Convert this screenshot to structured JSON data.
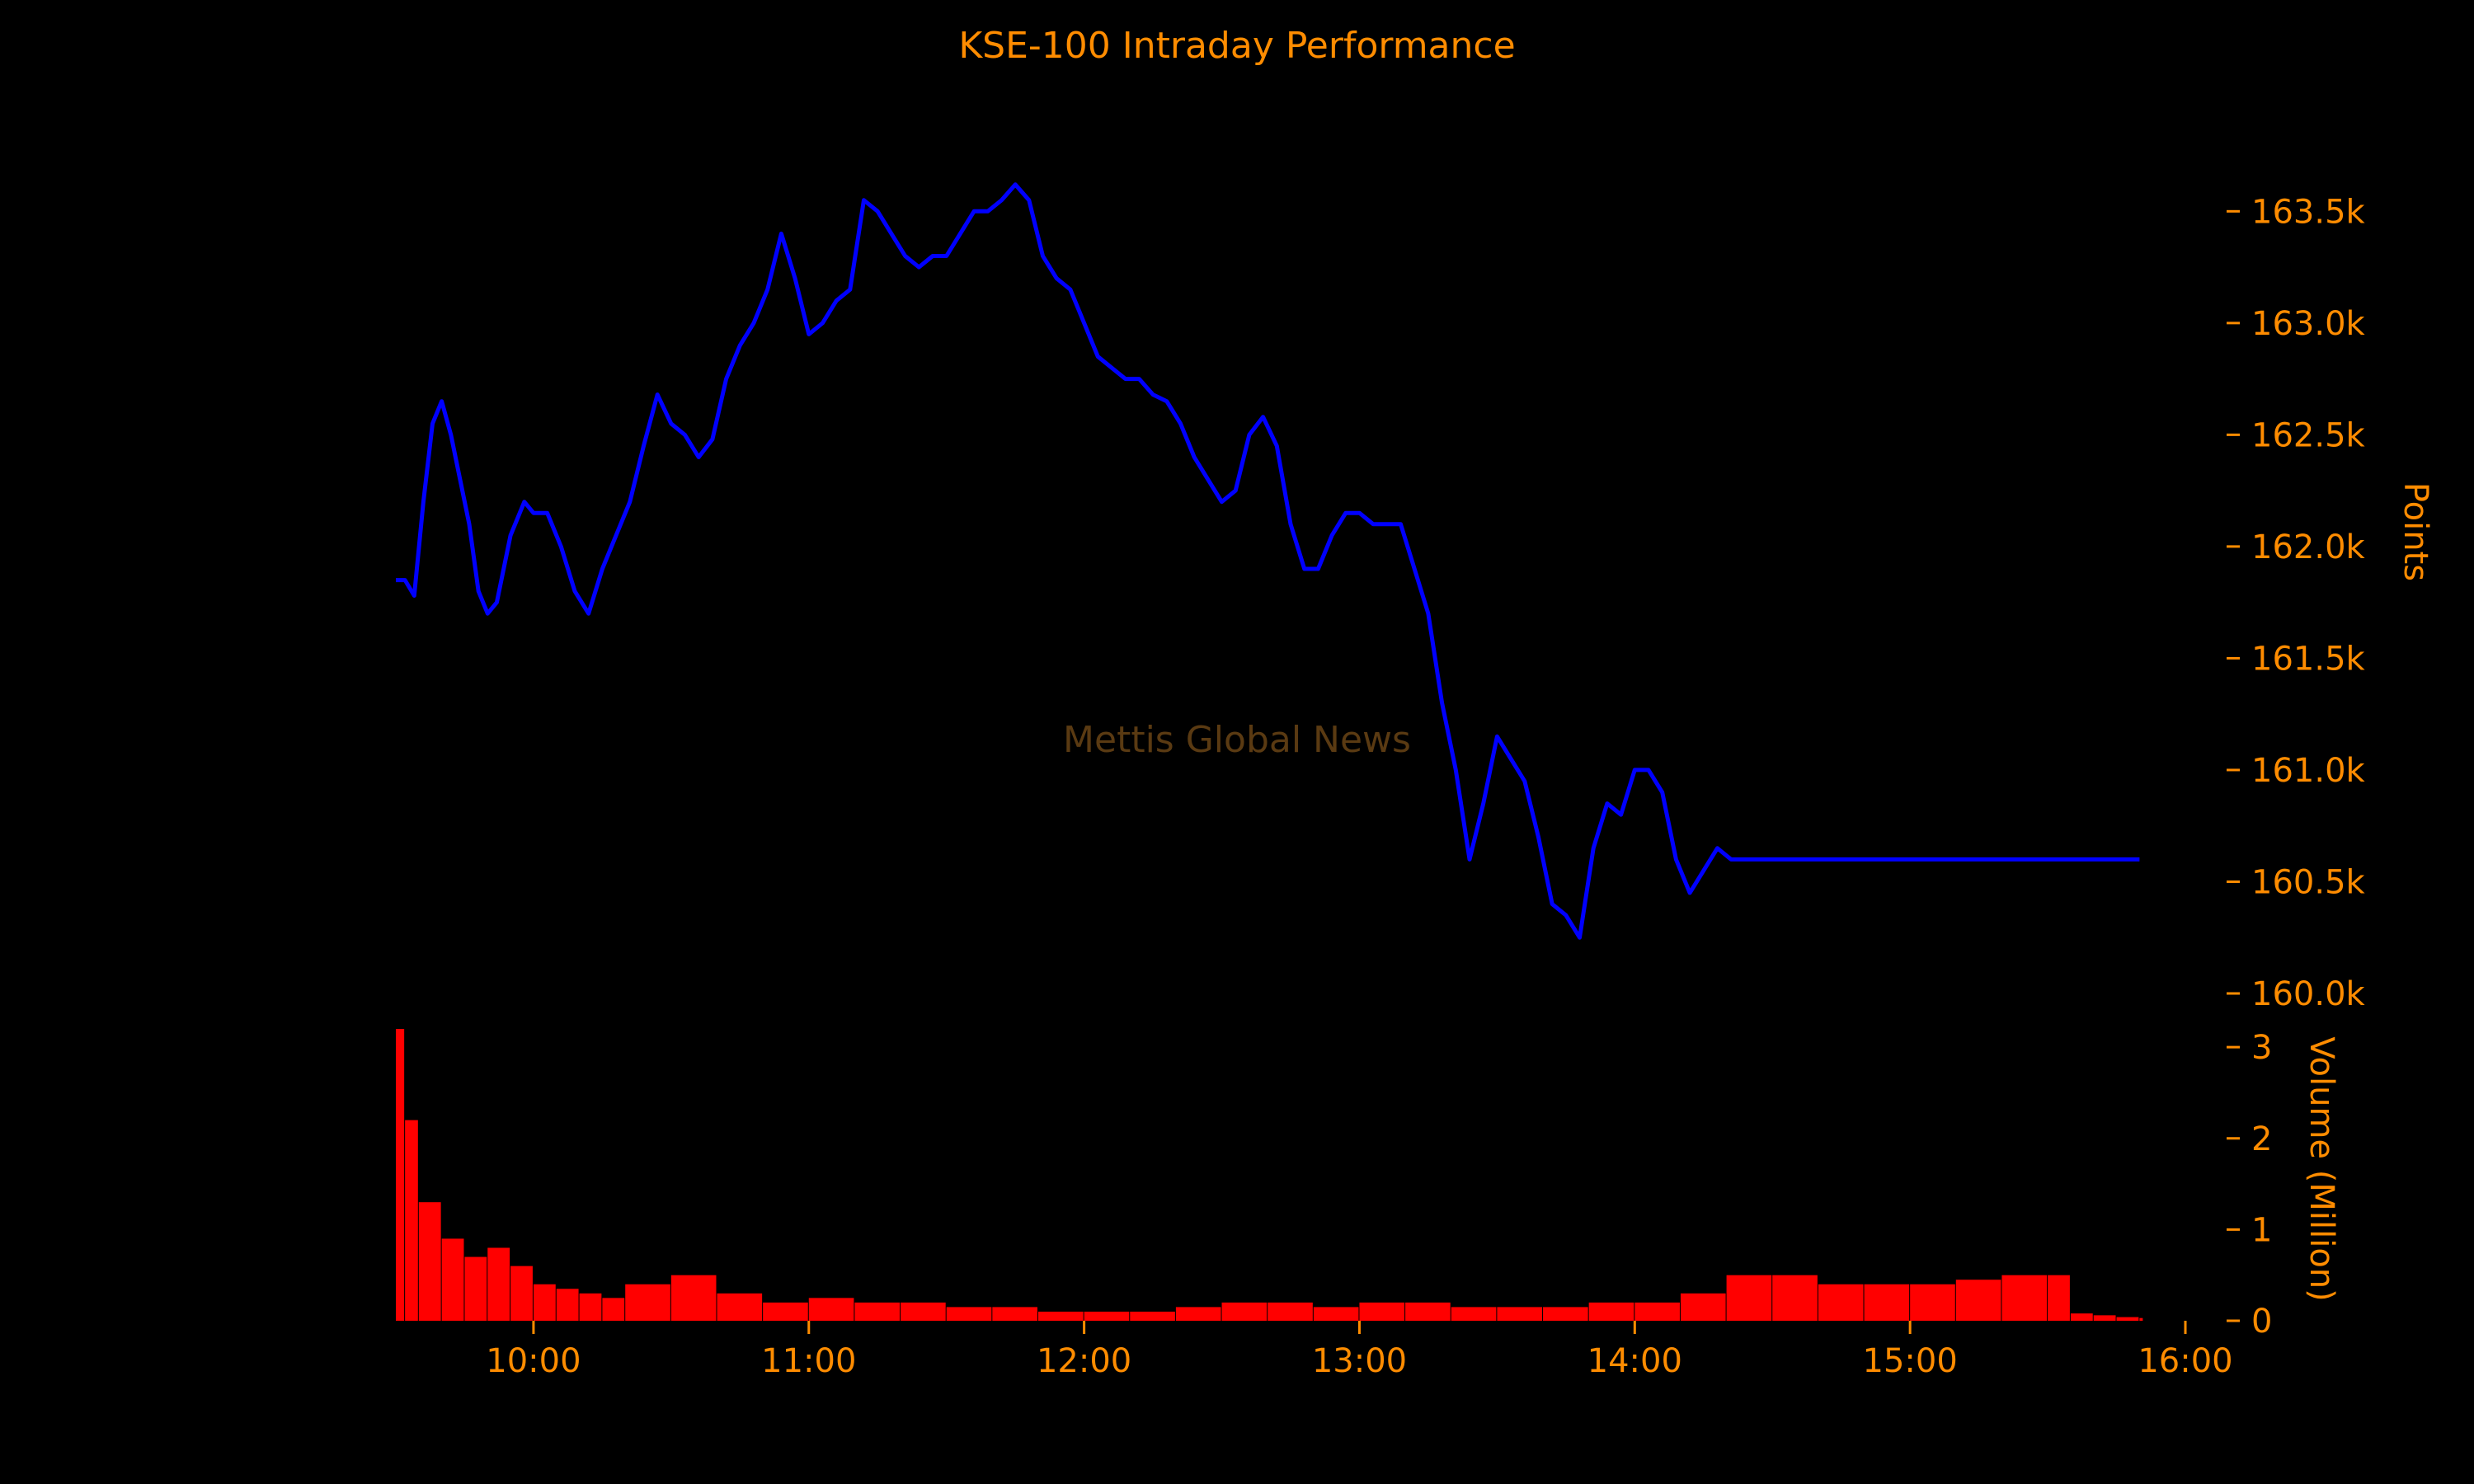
{
  "chart_data": {
    "type": "line",
    "title": "KSE-100 Intraday Performance",
    "watermark": "Mettis Global News",
    "colors": {
      "background": "#000000",
      "text": "#ff8c00",
      "line": "#0000ff",
      "volume": "#ff0000",
      "watermark": "#5a3a12"
    },
    "price": {
      "ylabel": "Points",
      "ylim": [
        160000,
        163800
      ],
      "yticks": [
        160000,
        160500,
        161000,
        161500,
        162000,
        162500,
        163000,
        163500
      ],
      "ytick_labels": [
        "160.0k",
        "160.5k",
        "161.0k",
        "161.5k",
        "162.0k",
        "162.5k",
        "163.0k",
        "163.5k"
      ],
      "series": [
        {
          "x": [
            "09:30",
            "09:32",
            "09:34",
            "09:36",
            "09:38",
            "09:40",
            "09:42",
            "09:44",
            "09:46",
            "09:48",
            "09:50",
            "09:52",
            "09:55",
            "09:58",
            "10:00",
            "10:03",
            "10:06",
            "10:09",
            "10:12",
            "10:15",
            "10:18",
            "10:21",
            "10:24",
            "10:27",
            "10:30",
            "10:33",
            "10:36",
            "10:39",
            "10:42",
            "10:45",
            "10:48",
            "10:51",
            "10:54",
            "10:57",
            "11:00",
            "11:03",
            "11:06",
            "11:09",
            "11:12",
            "11:15",
            "11:18",
            "11:21",
            "11:24",
            "11:27",
            "11:30",
            "11:33",
            "11:36",
            "11:39",
            "11:42",
            "11:45",
            "11:48",
            "11:51",
            "11:54",
            "11:57",
            "12:00",
            "12:03",
            "12:06",
            "12:09",
            "12:12",
            "12:15",
            "12:18",
            "12:21",
            "12:24",
            "12:27",
            "12:30",
            "12:33",
            "12:36",
            "12:39",
            "12:42",
            "12:45",
            "12:48",
            "12:51",
            "12:54",
            "12:57",
            "13:00",
            "13:03",
            "13:06",
            "13:09",
            "13:12",
            "13:15",
            "13:18",
            "13:21",
            "13:24",
            "13:27",
            "13:30",
            "13:33",
            "13:36",
            "13:39",
            "13:42",
            "13:45",
            "13:48",
            "13:51",
            "13:54",
            "13:57",
            "14:00",
            "14:03",
            "14:06",
            "14:09",
            "14:12",
            "14:15",
            "14:18",
            "14:21",
            "14:24",
            "14:27",
            "14:30",
            "14:33",
            "14:36",
            "14:39",
            "14:42",
            "14:45",
            "14:48",
            "14:51",
            "14:54",
            "14:57",
            "15:00",
            "15:03",
            "15:06",
            "15:09",
            "15:12",
            "15:15",
            "15:18",
            "15:21",
            "15:24",
            "15:27",
            "15:30",
            "15:33",
            "15:36",
            "15:39",
            "15:42",
            "15:45",
            "15:48",
            "15:50"
          ],
          "values": [
            161850,
            161850,
            161780,
            162200,
            162550,
            162650,
            162500,
            162300,
            162100,
            161800,
            161700,
            161750,
            162050,
            162200,
            162150,
            162150,
            162000,
            161800,
            161700,
            161900,
            162050,
            162200,
            162450,
            162680,
            162550,
            162500,
            162400,
            162480,
            162750,
            162900,
            163000,
            163150,
            163400,
            163200,
            162950,
            163000,
            163100,
            163150,
            163550,
            163500,
            163400,
            163300,
            163250,
            163300,
            163300,
            163400,
            163500,
            163500,
            163550,
            163620,
            163550,
            163300,
            163200,
            163150,
            163000,
            162850,
            162800,
            162750,
            162750,
            162680,
            162650,
            162550,
            162400,
            162300,
            162200,
            162250,
            162500,
            162580,
            162450,
            162100,
            161900,
            161900,
            162050,
            162150,
            162150,
            162100,
            162100,
            162100,
            161900,
            161700,
            161300,
            161000,
            160600,
            160850,
            161150,
            161050,
            160950,
            160700,
            160400,
            160350,
            160250,
            160650,
            160850,
            160800,
            161000,
            161000,
            160900,
            160600,
            160450,
            160550,
            160650,
            160600,
            160600,
            160600,
            160600,
            160600,
            160600,
            160600,
            160600,
            160600,
            160600,
            160600,
            160600,
            160600,
            160600,
            160600,
            160600,
            160600,
            160600,
            160600,
            160600,
            160600,
            160600,
            160600,
            160600,
            160600,
            160600,
            160600,
            160600,
            160600,
            160600,
            160600
          ]
        }
      ]
    },
    "volume": {
      "ylabel": "Volume (Million)",
      "ylim": [
        0,
        3.2
      ],
      "yticks": [
        0,
        1,
        2,
        3
      ],
      "ytick_labels": [
        "0",
        "1",
        "2",
        "3"
      ],
      "series": [
        {
          "x": [
            "09:30",
            "09:32",
            "09:35",
            "09:40",
            "09:45",
            "09:50",
            "09:55",
            "10:00",
            "10:05",
            "10:10",
            "10:15",
            "10:20",
            "10:30",
            "10:40",
            "10:50",
            "11:00",
            "11:10",
            "11:20",
            "11:30",
            "11:40",
            "11:50",
            "12:00",
            "12:10",
            "12:20",
            "12:30",
            "12:40",
            "12:50",
            "13:00",
            "13:10",
            "13:20",
            "13:30",
            "13:40",
            "13:50",
            "14:00",
            "14:10",
            "14:20",
            "14:30",
            "14:40",
            "14:50",
            "15:00",
            "15:10",
            "15:20",
            "15:30",
            "15:35",
            "15:40",
            "15:45",
            "15:50"
          ],
          "values": [
            3.2,
            2.2,
            1.3,
            0.9,
            0.7,
            0.8,
            0.6,
            0.4,
            0.35,
            0.3,
            0.25,
            0.4,
            0.5,
            0.3,
            0.2,
            0.25,
            0.2,
            0.2,
            0.15,
            0.15,
            0.1,
            0.1,
            0.1,
            0.15,
            0.2,
            0.2,
            0.15,
            0.2,
            0.2,
            0.15,
            0.15,
            0.15,
            0.2,
            0.2,
            0.3,
            0.5,
            0.5,
            0.4,
            0.4,
            0.4,
            0.45,
            0.5,
            0.5,
            0.08,
            0.06,
            0.04,
            0.03
          ]
        }
      ]
    },
    "xaxis": {
      "range": [
        "09:30",
        "16:00"
      ],
      "ticks": [
        "10:00",
        "11:00",
        "12:00",
        "13:00",
        "14:00",
        "15:00",
        "16:00"
      ]
    }
  }
}
